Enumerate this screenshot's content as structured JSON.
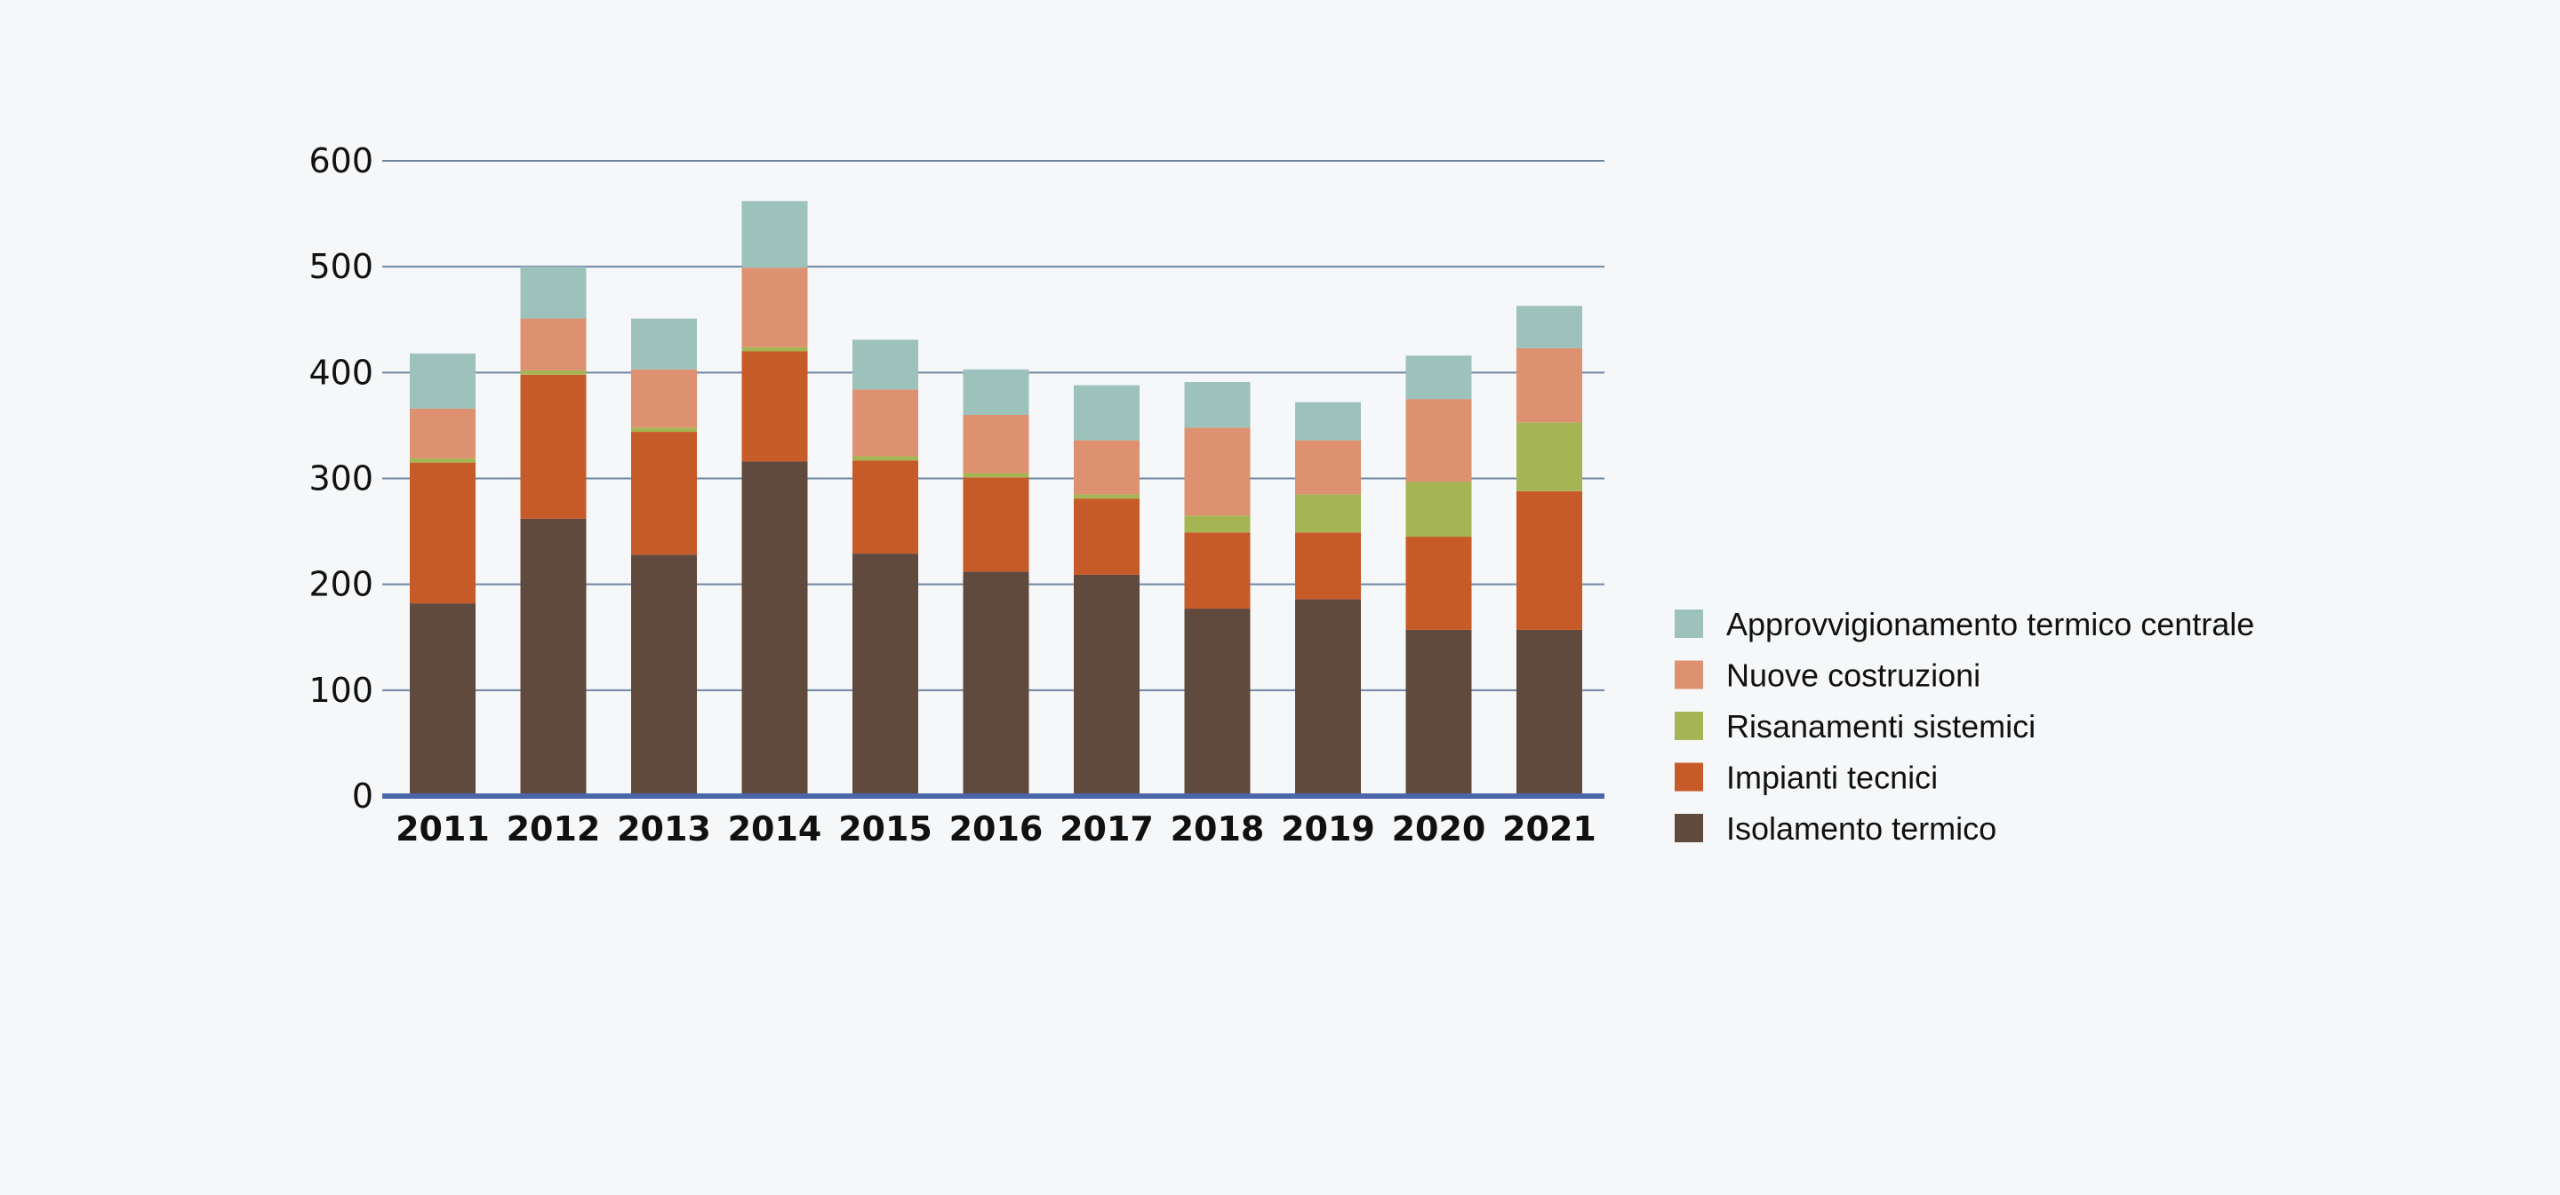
{
  "chart_data": {
    "type": "bar",
    "stacked": true,
    "title": "",
    "xlabel": "",
    "ylabel": "",
    "ylim": [
      0,
      600
    ],
    "yticks": [
      "0",
      "100",
      "200",
      "300",
      "400",
      "500",
      "600"
    ],
    "grid": true,
    "legend_position": "right",
    "categories": [
      "2011",
      "2012",
      "2013",
      "2014",
      "2015",
      "2016",
      "2017",
      "2018",
      "2019",
      "2020",
      "2021"
    ],
    "series": [
      {
        "name": "Isolamento termico",
        "color": "#60493d",
        "values": [
          182,
          262,
          228,
          316,
          229,
          212,
          209,
          177,
          186,
          157,
          157
        ]
      },
      {
        "name": "Impianti tecnici",
        "color": "#c75a29",
        "values": [
          133,
          136,
          116,
          104,
          88,
          89,
          72,
          72,
          63,
          88,
          131
        ]
      },
      {
        "name": "Risanamenti sistemici",
        "color": "#a6b553",
        "values": [
          4,
          4,
          4,
          4,
          4,
          4,
          4,
          16,
          36,
          52,
          65
        ]
      },
      {
        "name": "Nuove costruzioni",
        "color": "#dd9171",
        "values": [
          47,
          49,
          55,
          75,
          63,
          55,
          51,
          83,
          51,
          78,
          70
        ]
      },
      {
        "name": "Approvvigionamento termico centrale",
        "color": "#9dc1bb",
        "values": [
          52,
          49,
          48,
          63,
          47,
          43,
          52,
          43,
          36,
          41,
          40
        ]
      }
    ]
  },
  "colors": {
    "background": "#f5f7f8",
    "gridline": "#6f84a1",
    "baseline": "#4a66a8"
  }
}
